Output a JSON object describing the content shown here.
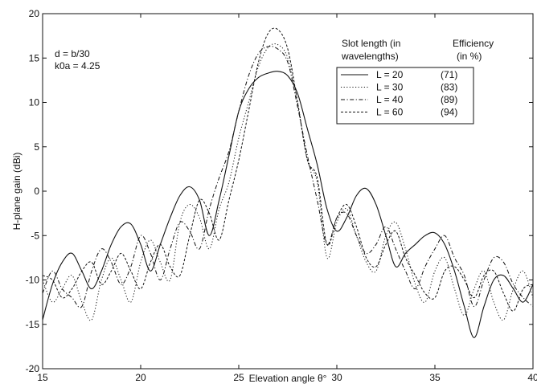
{
  "chart_data": {
    "type": "line",
    "xlabel": "Elevation angle θ°",
    "ylabel": "H-plane gain (dBi)",
    "xlim": [
      15,
      40
    ],
    "ylim": [
      -20,
      20
    ],
    "xticks": [
      15,
      20,
      25,
      30,
      35,
      40
    ],
    "yticks": [
      -20,
      -15,
      -10,
      -5,
      0,
      5,
      10,
      15,
      20
    ],
    "grid": false,
    "legend_placement": "top-right",
    "annotations": [
      "d = b/30",
      "k0a = 4.25"
    ],
    "legend_headers": [
      "Slot length (in",
      "wavelengths)",
      "Efficiency",
      "(in %)"
    ],
    "series": [
      {
        "name": "L = 20",
        "efficiency": "(71)",
        "style": "solid",
        "x": [
          15,
          15.5,
          16,
          16.5,
          17,
          17.5,
          18,
          18.5,
          19,
          19.5,
          20,
          20.5,
          21,
          21.5,
          22,
          22.5,
          23,
          23.5,
          24,
          24.5,
          25,
          25.5,
          26,
          26.5,
          27,
          27.5,
          28,
          28.5,
          29,
          29.5,
          30,
          30.5,
          31,
          31.5,
          32,
          32.5,
          33,
          33.5,
          34,
          34.5,
          35,
          35.5,
          36,
          36.5,
          37,
          37.5,
          38,
          38.5,
          39,
          39.5,
          40
        ],
        "y": [
          -14.5,
          -10.5,
          -8,
          -7,
          -9,
          -11,
          -9,
          -6,
          -4,
          -3.7,
          -6,
          -9,
          -6,
          -3,
          -0.5,
          0.5,
          -1,
          -5,
          -1,
          4,
          9,
          11.5,
          12.8,
          13.3,
          13.5,
          13,
          11,
          7,
          3,
          -2,
          -4.5,
          -3,
          -0.5,
          0.3,
          -1.5,
          -5,
          -8.5,
          -7,
          -6,
          -5,
          -4.7,
          -6,
          -9,
          -13,
          -16.5,
          -13,
          -10,
          -9.5,
          -11,
          -12.5,
          -10.5
        ]
      },
      {
        "name": "L = 30",
        "efficiency": "(83)",
        "style": "dotted",
        "x": [
          15,
          15.5,
          16,
          16.5,
          17,
          17.5,
          18,
          18.5,
          19,
          19.5,
          20,
          20.5,
          21,
          21.5,
          22,
          22.5,
          23,
          23.5,
          24,
          24.5,
          25,
          25.5,
          26,
          26.5,
          27,
          27.5,
          28,
          28.5,
          29,
          29.5,
          30,
          30.5,
          31,
          31.5,
          32,
          32.5,
          33,
          33.5,
          34,
          34.5,
          35,
          35.5,
          36,
          36.5,
          37,
          37.5,
          38,
          38.5,
          39,
          39.5,
          40
        ],
        "y": [
          -10,
          -12.5,
          -11,
          -9.5,
          -12.5,
          -14.5,
          -10,
          -7.5,
          -10,
          -12.5,
          -8,
          -5.5,
          -8,
          -10,
          -3.5,
          -1.5,
          -3,
          -6.5,
          -2,
          1,
          6,
          10,
          14,
          16.2,
          16.5,
          15,
          10,
          3.5,
          1,
          -7.5,
          -3.5,
          -2,
          -5,
          -8,
          -9,
          -5,
          -3.5,
          -6.5,
          -10.5,
          -12.5,
          -9,
          -7.5,
          -11,
          -14,
          -11,
          -9,
          -12.5,
          -14.5,
          -11,
          -9,
          -12
        ]
      },
      {
        "name": "L = 40",
        "efficiency": "(89)",
        "style": "dashdot",
        "x": [
          15,
          15.5,
          16,
          16.5,
          17,
          17.5,
          18,
          18.5,
          19,
          19.5,
          20,
          20.5,
          21,
          21.5,
          22,
          22.5,
          23,
          23.5,
          24,
          24.5,
          25,
          25.5,
          26,
          26.5,
          27,
          27.5,
          28,
          28.5,
          29,
          29.5,
          30,
          30.5,
          31,
          31.5,
          32,
          32.5,
          33,
          33.5,
          34,
          34.5,
          35,
          35.5,
          36,
          36.5,
          37,
          37.5,
          38,
          38.5,
          39,
          39.5,
          40
        ],
        "y": [
          -11.5,
          -9,
          -11,
          -12,
          -13,
          -9,
          -6.5,
          -8,
          -10.5,
          -8.5,
          -5,
          -7,
          -10,
          -6.5,
          -3.5,
          -4.5,
          -6.5,
          -2,
          1.5,
          4.5,
          9,
          13,
          15.5,
          16.3,
          16,
          14.5,
          9.5,
          4,
          -1,
          -6,
          -3,
          -2.5,
          -5,
          -7,
          -6,
          -4,
          -6.5,
          -9,
          -11,
          -8.5,
          -6.5,
          -5,
          -7.5,
          -9.5,
          -13,
          -10,
          -7.5,
          -8,
          -10.5,
          -12,
          -13
        ]
      },
      {
        "name": "L = 60",
        "efficiency": "(94)",
        "style": "dashed",
        "x": [
          15,
          15.5,
          16,
          16.5,
          17,
          17.5,
          18,
          18.5,
          19,
          19.5,
          20,
          20.5,
          21,
          21.5,
          22,
          22.5,
          23,
          23.5,
          24,
          24.5,
          25,
          25.5,
          26,
          26.5,
          27,
          27.5,
          28,
          28.5,
          29,
          29.5,
          30,
          30.5,
          31,
          31.5,
          32,
          32.5,
          33,
          33.5,
          34,
          34.5,
          35,
          35.5,
          36,
          36.5,
          37,
          37.5,
          38,
          38.5,
          39,
          39.5,
          40
        ],
        "y": [
          -9.5,
          -10,
          -12,
          -11,
          -9,
          -8,
          -10.5,
          -9,
          -7,
          -9,
          -11,
          -8,
          -6,
          -8.5,
          -9.5,
          -5,
          -1,
          -2.5,
          -5.5,
          -1,
          3.5,
          9,
          14.5,
          17.8,
          18.2,
          16,
          10,
          3.5,
          1.5,
          -6,
          -3,
          -1.5,
          -4,
          -7.5,
          -8.5,
          -6,
          -4.5,
          -7.5,
          -9.5,
          -11.5,
          -12,
          -9,
          -8.5,
          -10,
          -12,
          -9.5,
          -9,
          -11.5,
          -13.5,
          -11,
          -10.5
        ]
      }
    ]
  }
}
